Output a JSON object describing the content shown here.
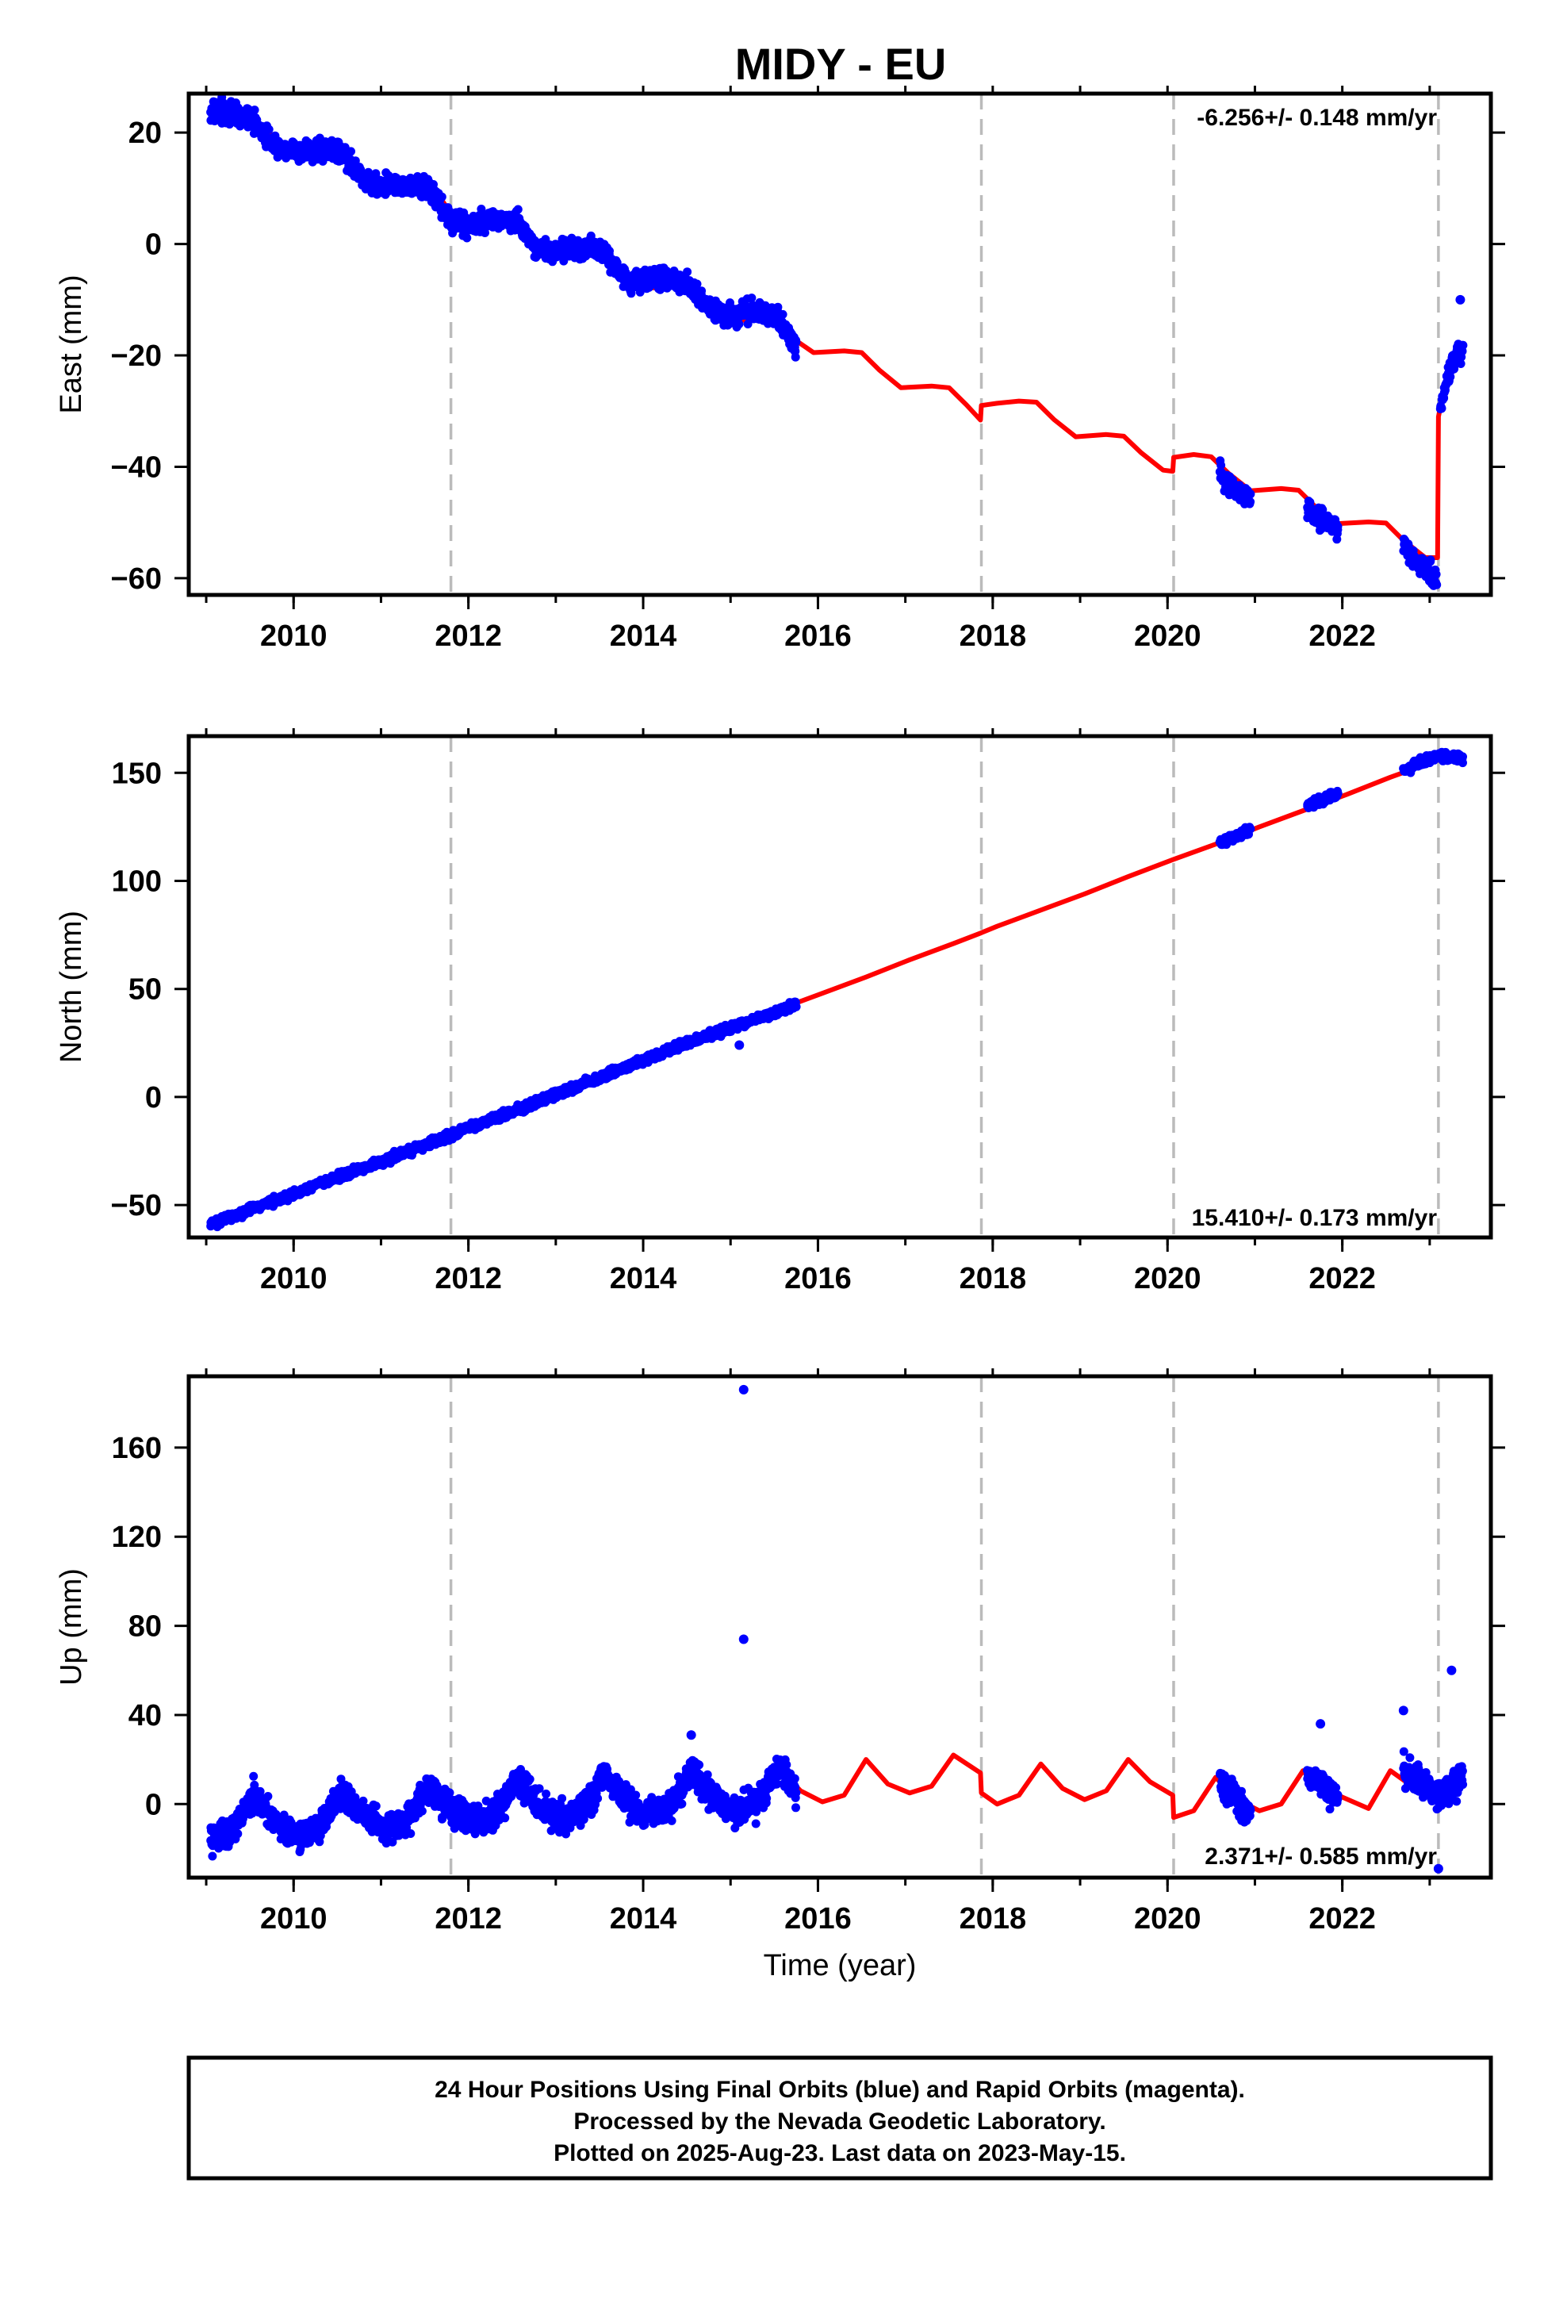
{
  "title": "MIDY - EU",
  "xlabel": "Time (year)",
  "footer": {
    "line1": "24 Hour Positions Using Final Orbits (blue) and Rapid Orbits (magenta).",
    "line2": "Processed by the Nevada Geodetic Laboratory.",
    "line3": "Plotted on 2025-Aug-23. Last data on 2023-May-15."
  },
  "colors": {
    "data": "#0000ff",
    "model": "#ff0000",
    "event_line": "#bbbbbb",
    "frame": "#000000"
  },
  "chart_data": [
    {
      "type": "scatter",
      "name": "east",
      "ylabel": "East (mm)",
      "rate_label": "-6.256+/- 0.148 mm/yr",
      "rate_position": "top-right",
      "xlim": [
        2008.8,
        2023.7
      ],
      "ylim": [
        -63,
        27
      ],
      "xticks": [
        2010,
        2012,
        2014,
        2016,
        2018,
        2020,
        2022
      ],
      "xtick_labels": [
        "2010",
        "2012",
        "2014",
        "2016",
        "2018",
        "2020",
        "2022"
      ],
      "yticks": [
        20,
        0,
        -20,
        -40,
        -60
      ],
      "ytick_labels": [
        "20",
        "0",
        "−20",
        "−40",
        "−60"
      ],
      "events": [
        2011.8,
        2017.87,
        2020.07,
        2023.1
      ],
      "data_segments": [
        {
          "x": [
            2009.05,
            2009.3,
            2009.55,
            2009.8,
            2010.05,
            2010.3,
            2010.55,
            2010.8,
            2011.05,
            2011.3,
            2011.55,
            2011.8,
            2012.05,
            2012.3,
            2012.55,
            2012.8,
            2013.05,
            2013.3,
            2013.55,
            2013.8,
            2014.05,
            2014.3,
            2014.55,
            2014.8,
            2015.05,
            2015.3,
            2015.55,
            2015.75
          ],
          "y": [
            23.5,
            23.8,
            22,
            17.5,
            16.8,
            17,
            16.5,
            11.5,
            10.5,
            10.6,
            10,
            3.8,
            3.5,
            4.5,
            4,
            -1,
            -1,
            -0.5,
            -1,
            -6.5,
            -6.5,
            -6.2,
            -7.5,
            -12.5,
            -12.5,
            -12,
            -13.5,
            -18.5
          ]
        },
        {
          "x": [
            2020.6,
            2020.8,
            2020.95
          ],
          "y": [
            -41.5,
            -44.5,
            -46
          ]
        },
        {
          "x": [
            2021.6,
            2021.8,
            2021.95
          ],
          "y": [
            -47.5,
            -50,
            -51
          ]
        },
        {
          "x": [
            2022.7,
            2022.85,
            2023.0,
            2023.08
          ],
          "y": [
            -54,
            -57,
            -59,
            -60
          ]
        },
        {
          "x": [
            2023.12,
            2023.2,
            2023.3,
            2023.38
          ],
          "y": [
            -30,
            -24,
            -20,
            -19
          ]
        }
      ],
      "outliers": [
        {
          "x": 2023.35,
          "y": -10
        }
      ],
      "model": {
        "x": [
          2009.05,
          2009.3,
          2009.5,
          2009.7,
          2009.95,
          2010.3,
          2010.5,
          2010.7,
          2010.95,
          2011.3,
          2011.5,
          2011.7,
          2011.8,
          2011.81,
          2012.05,
          2012.3,
          2012.5,
          2012.7,
          2012.95,
          2013.3,
          2013.5,
          2013.7,
          2013.95,
          2014.3,
          2014.5,
          2014.7,
          2014.95,
          2015.3,
          2015.5,
          2015.7,
          2015.95,
          2016.3,
          2016.5,
          2016.7,
          2016.95,
          2017.3,
          2017.5,
          2017.7,
          2017.86,
          2017.87,
          2018.05,
          2018.3,
          2018.5,
          2018.7,
          2018.95,
          2019.3,
          2019.5,
          2019.7,
          2019.95,
          2020.06,
          2020.07,
          2020.3,
          2020.5,
          2020.7,
          2020.95,
          2021.3,
          2021.5,
          2021.7,
          2021.95,
          2022.3,
          2022.5,
          2022.7,
          2022.95,
          2023.09,
          2023.1,
          2023.2,
          2023.3,
          2023.38
        ],
        "y": [
          23.2,
          23.6,
          23.3,
          20.2,
          17.2,
          17.5,
          17.2,
          14.2,
          11,
          11.2,
          10.9,
          7.8,
          5.5,
          4.5,
          3.6,
          4.4,
          4.1,
          1.1,
          -2.1,
          -1.5,
          -1.8,
          -4.9,
          -8.1,
          -7.6,
          -7.9,
          -11,
          -14.1,
          -13.4,
          -13.7,
          -16.8,
          -19.5,
          -19.2,
          -19.5,
          -22.6,
          -25.8,
          -25.5,
          -25.8,
          -28.9,
          -31.6,
          -29,
          -28.6,
          -28.2,
          -28.4,
          -31.5,
          -34.6,
          -34.2,
          -34.5,
          -37.5,
          -40.6,
          -40.8,
          -38.3,
          -37.8,
          -38.2,
          -41.2,
          -44.3,
          -43.9,
          -44.2,
          -47.3,
          -50.2,
          -49.9,
          -50.1,
          -53.2,
          -56.3,
          -56.3,
          -31,
          -23,
          -20,
          -19
        ]
      }
    },
    {
      "type": "scatter",
      "name": "north",
      "ylabel": "North (mm)",
      "rate_label": "15.410+/- 0.173 mm/yr",
      "rate_position": "bottom-right",
      "xlim": [
        2008.8,
        2023.7
      ],
      "ylim": [
        -65,
        167
      ],
      "xticks": [
        2010,
        2012,
        2014,
        2016,
        2018,
        2020,
        2022
      ],
      "xtick_labels": [
        "2010",
        "2012",
        "2014",
        "2016",
        "2018",
        "2020",
        "2022"
      ],
      "yticks": [
        150,
        100,
        50,
        0,
        -50
      ],
      "ytick_labels": [
        "150",
        "100",
        "50",
        "0",
        "−50"
      ],
      "events": [
        2011.8,
        2017.87,
        2020.07,
        2023.1
      ],
      "data_segments": [
        {
          "x": [
            2009.05,
            2009.5,
            2010,
            2010.5,
            2011,
            2011.5,
            2011.8,
            2012,
            2012.5,
            2013,
            2013.5,
            2014,
            2014.5,
            2015,
            2015.5,
            2015.75
          ],
          "y": [
            -59,
            -52,
            -45,
            -37,
            -30,
            -22,
            -18,
            -14,
            -7,
            1,
            9,
            17,
            25,
            32,
            39,
            43
          ]
        },
        {
          "x": [
            2020.6,
            2020.8,
            2020.95
          ],
          "y": [
            118,
            121,
            124
          ]
        },
        {
          "x": [
            2021.6,
            2021.8,
            2021.95
          ],
          "y": [
            135,
            138,
            140
          ]
        },
        {
          "x": [
            2022.7,
            2022.9,
            2023.1,
            2023.38
          ],
          "y": [
            151,
            155,
            158,
            157
          ]
        }
      ],
      "outliers": [
        {
          "x": 2015.1,
          "y": 24
        }
      ],
      "model": {
        "x": [
          2009.05,
          2009.55,
          2010.05,
          2010.55,
          2011.05,
          2011.55,
          2011.8,
          2012.05,
          2012.55,
          2013.05,
          2013.55,
          2014.05,
          2014.55,
          2015.05,
          2015.55,
          2016.05,
          2016.55,
          2017.05,
          2017.55,
          2017.87,
          2018.05,
          2018.55,
          2019.05,
          2019.55,
          2020.07,
          2020.55,
          2021.05,
          2021.55,
          2022.05,
          2022.55,
          2023.1,
          2023.38
        ],
        "y": [
          -59,
          -51.5,
          -44,
          -36.5,
          -28.5,
          -21,
          -17,
          -13,
          -5.5,
          2.5,
          10,
          17.5,
          25.5,
          33,
          40.5,
          48,
          55.5,
          63.5,
          71,
          76,
          79,
          86.5,
          94,
          102,
          110,
          117,
          125,
          132.5,
          140,
          148,
          156,
          157
        ]
      }
    },
    {
      "type": "scatter",
      "name": "up",
      "ylabel": "Up (mm)",
      "rate_label": "2.371+/- 0.585 mm/yr",
      "rate_position": "bottom-right",
      "xlim": [
        2008.8,
        2023.7
      ],
      "ylim": [
        -33,
        192
      ],
      "xticks": [
        2010,
        2012,
        2014,
        2016,
        2018,
        2020,
        2022
      ],
      "xtick_labels": [
        "2010",
        "2012",
        "2014",
        "2016",
        "2018",
        "2020",
        "2022"
      ],
      "yticks": [
        160,
        120,
        80,
        40,
        0
      ],
      "ytick_labels": [
        "160",
        "120",
        "80",
        "40",
        "0"
      ],
      "events": [
        2011.8,
        2017.87,
        2020.07,
        2023.1
      ],
      "data_segments": [
        {
          "x": [
            2009.05,
            2009.3,
            2009.55,
            2009.8,
            2010.05,
            2010.3,
            2010.55,
            2010.8,
            2011.05,
            2011.3,
            2011.55,
            2011.8,
            2012.05,
            2012.3,
            2012.55,
            2012.8,
            2013.05,
            2013.3,
            2013.55,
            2013.8,
            2014.05,
            2014.3,
            2014.55,
            2014.8,
            2015.05,
            2015.3,
            2015.55,
            2015.75
          ],
          "y": [
            -16,
            -12,
            4,
            -8,
            -15,
            -10,
            6,
            -5,
            -12,
            -7,
            8,
            -2,
            -8,
            -5,
            11,
            0,
            -7,
            -4,
            13,
            2,
            -5,
            -2,
            15,
            3,
            -3,
            0,
            17,
            6
          ]
        },
        {
          "x": [
            2020.6,
            2020.8,
            2020.95
          ],
          "y": [
            10,
            2,
            -5
          ]
        },
        {
          "x": [
            2021.6,
            2021.8,
            2021.95
          ],
          "y": [
            14,
            8,
            2
          ]
        },
        {
          "x": [
            2022.7,
            2022.9,
            2023.1,
            2023.38
          ],
          "y": [
            16,
            10,
            4,
            12
          ]
        }
      ],
      "outliers": [
        {
          "x": 2015.15,
          "y": 186
        },
        {
          "x": 2015.15,
          "y": 74
        },
        {
          "x": 2014.55,
          "y": 31
        },
        {
          "x": 2021.75,
          "y": 36
        },
        {
          "x": 2022.7,
          "y": 42
        },
        {
          "x": 2023.25,
          "y": 60
        },
        {
          "x": 2023.1,
          "y": -29
        }
      ],
      "model": {
        "x": [
          2009.05,
          2009.3,
          2009.55,
          2009.8,
          2010.05,
          2010.3,
          2010.55,
          2010.8,
          2011.05,
          2011.3,
          2011.55,
          2011.8,
          2012.05,
          2012.3,
          2012.55,
          2012.8,
          2013.05,
          2013.3,
          2013.55,
          2013.8,
          2014.05,
          2014.3,
          2014.55,
          2014.8,
          2015.05,
          2015.3,
          2015.55,
          2015.8,
          2016.05,
          2016.3,
          2016.55,
          2016.8,
          2017.05,
          2017.3,
          2017.55,
          2017.86,
          2017.87,
          2018.05,
          2018.3,
          2018.55,
          2018.8,
          2019.05,
          2019.3,
          2019.55,
          2019.8,
          2020.06,
          2020.07,
          2020.3,
          2020.55,
          2020.8,
          2021.05,
          2021.3,
          2021.55,
          2021.7,
          2021.71,
          2021.95,
          2022.3,
          2022.55,
          2022.8,
          2023.09,
          2023.1,
          2023.3,
          2023.38
        ],
        "y": [
          -16,
          -12,
          3,
          -7,
          -14,
          -9,
          5,
          -5,
          -11,
          -7,
          7,
          -1,
          -8,
          -4,
          9,
          -1,
          -7,
          -3,
          11,
          0,
          -5,
          -1,
          14,
          2,
          -3,
          1,
          16,
          6,
          1,
          4,
          20,
          9,
          5,
          8,
          22,
          14,
          5,
          0,
          4,
          18,
          7,
          2,
          6,
          20,
          10,
          4,
          -6,
          -3,
          12,
          2,
          -3,
          0,
          15,
          8,
          15,
          4,
          -2,
          15,
          8,
          1,
          3,
          8,
          10
        ]
      }
    }
  ]
}
